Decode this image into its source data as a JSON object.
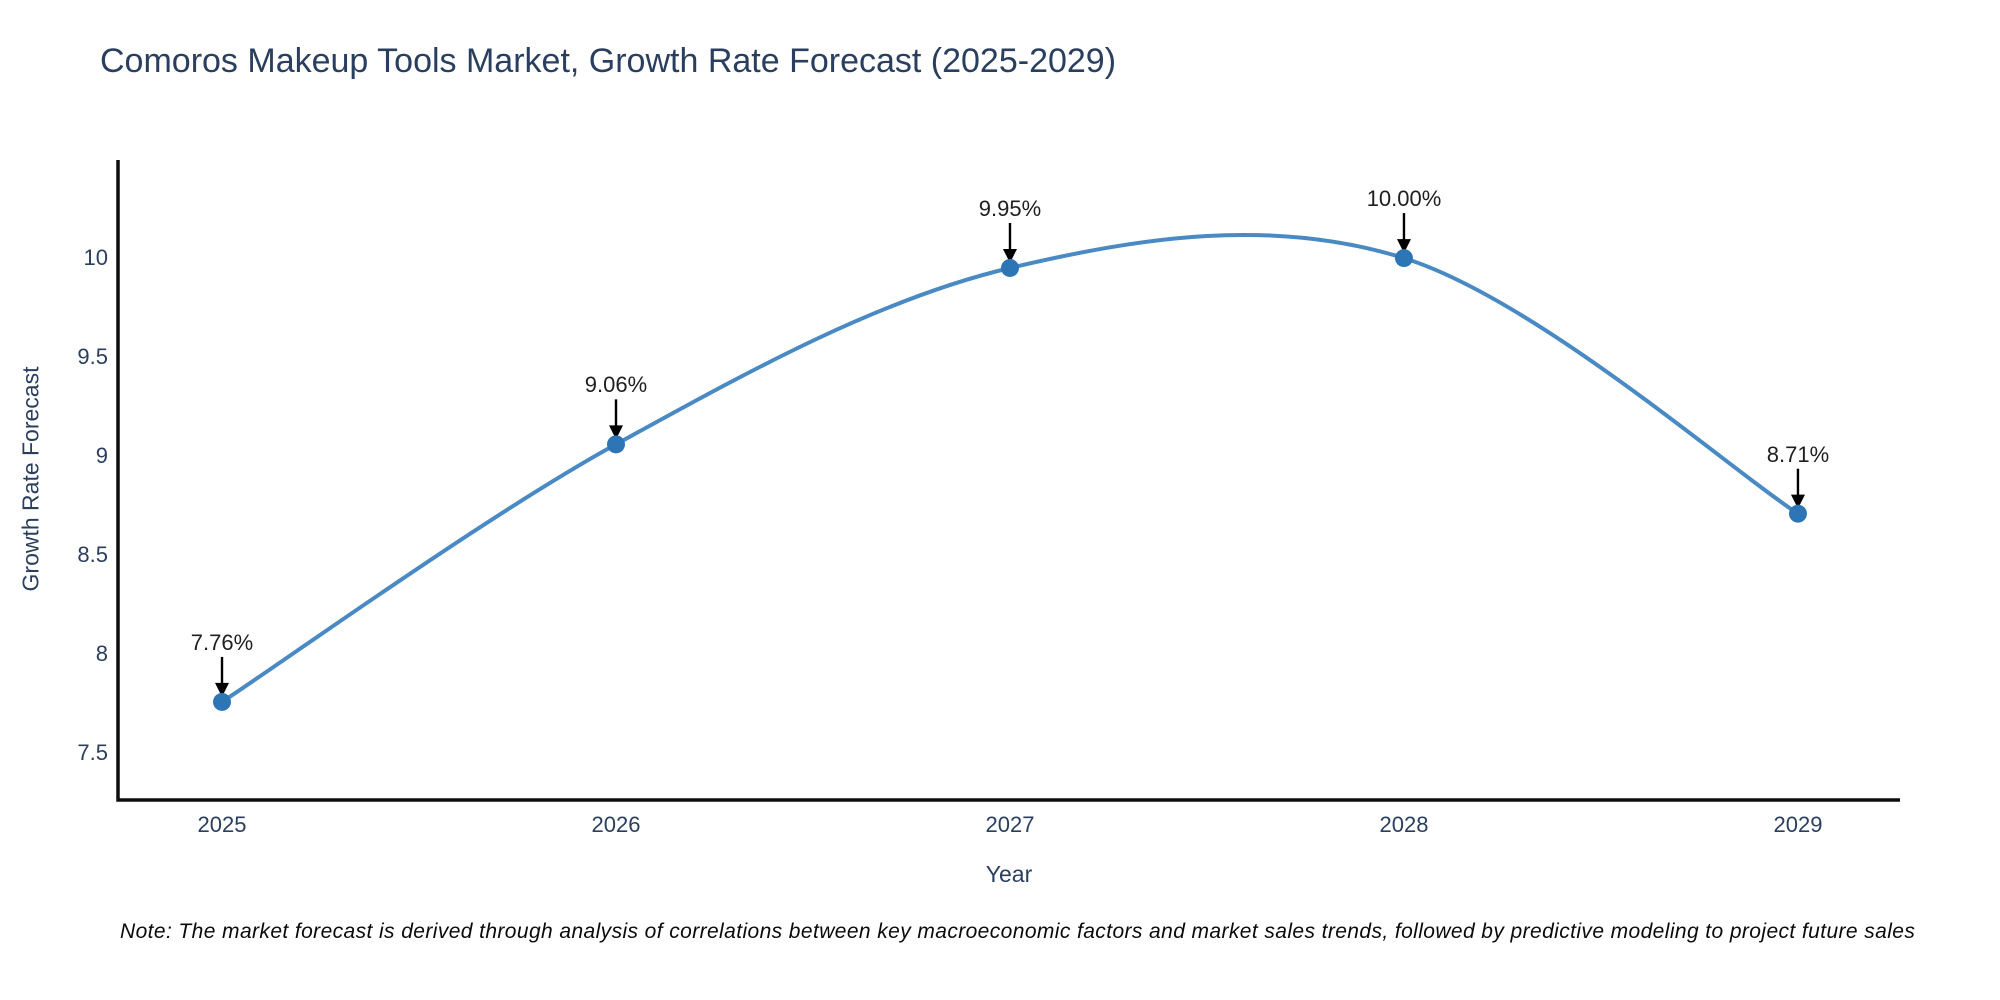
{
  "title": "Comoros Makeup Tools Market, Growth Rate Forecast (2025-2029)",
  "note": "Note: The market forecast is derived through analysis of correlations between key macroeconomic factors and market sales trends, followed by predictive modeling to project future sales",
  "chart_data": {
    "type": "line",
    "line_shape": "spline",
    "title": "Comoros Makeup Tools Market, Growth Rate Forecast (2025-2029)",
    "xlabel": "Year",
    "ylabel": "Growth Rate Forecast",
    "x": [
      2025,
      2026,
      2027,
      2028,
      2029
    ],
    "y": [
      7.76,
      9.06,
      9.95,
      10.0,
      8.71
    ],
    "point_labels": [
      "7.76%",
      "9.06%",
      "9.95%",
      "10.00%",
      "8.71%"
    ],
    "x_tick_labels": [
      "2025",
      "2026",
      "2027",
      "2028",
      "2029"
    ],
    "y_tick_values": [
      10,
      9.5,
      9,
      8.5,
      8,
      7.5
    ],
    "y_tick_labels": [
      "10",
      "9.5",
      "9",
      "8.5",
      "8",
      "7.5"
    ],
    "xlim": [
      2024.736,
      2029.259
    ],
    "ylim": [
      7.265,
      10.495
    ],
    "grid": false,
    "legend": "none",
    "colors": {
      "line": "#4a8ac4",
      "marker": "#2e75b6",
      "axis": "#0d0d0d",
      "axis_text": "#2a3f5f",
      "annotation_text": "#1f1f1f",
      "annotation_arrow": "#000000"
    }
  }
}
